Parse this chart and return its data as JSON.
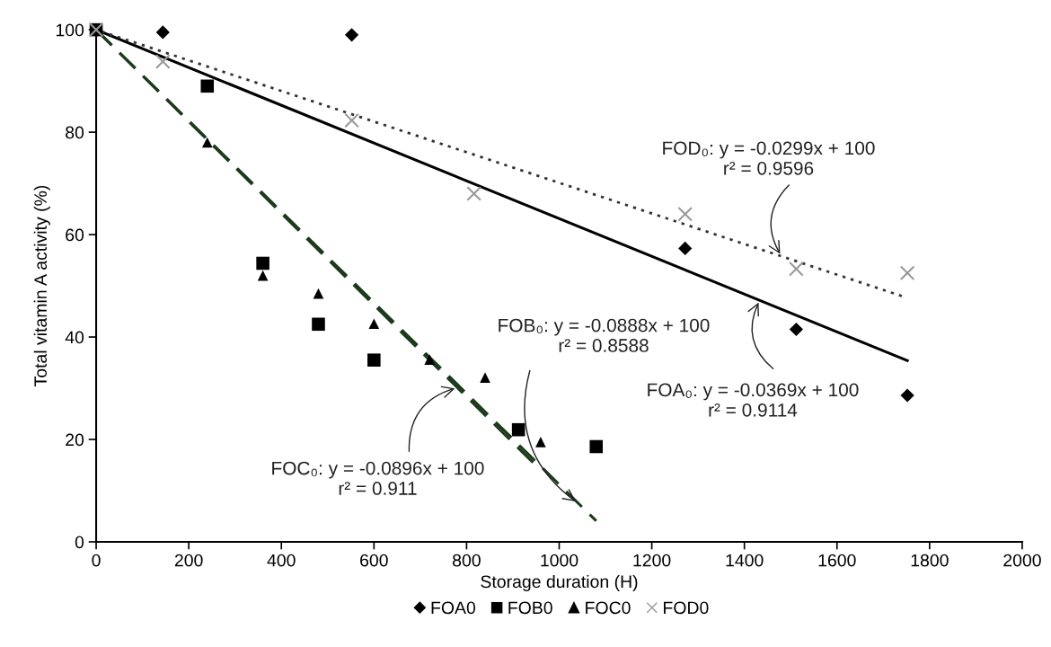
{
  "chart_data": {
    "type": "scatter",
    "xlabel": "Storage duration (H)",
    "ylabel": "Total vitamin A activity (%)",
    "xlim": [
      0,
      2000
    ],
    "xticks": [
      0,
      200,
      400,
      600,
      800,
      1000,
      1200,
      1400,
      1600,
      1800,
      2000
    ],
    "ylim": [
      0,
      100
    ],
    "yticks": [
      0,
      20,
      40,
      60,
      80,
      100
    ],
    "grid": false,
    "legend": "bottom",
    "series": [
      {
        "name": "FOA0",
        "marker": "diamond",
        "color": "#000000",
        "x": [
          144,
          552,
          1272,
          1512,
          1752
        ],
        "values": [
          99.5,
          99,
          57.3,
          41.5,
          28.6
        ]
      },
      {
        "name": "FOB0",
        "marker": "square",
        "color": "#000000",
        "x": [
          0,
          240,
          360,
          480,
          600,
          912,
          1080
        ],
        "values": [
          100,
          89,
          54.4,
          42.5,
          35.5,
          21.9,
          18.6
        ]
      },
      {
        "name": "FOC0",
        "marker": "triangle",
        "color": "#000000",
        "x": [
          240,
          360,
          480,
          600,
          720,
          840,
          960
        ],
        "values": [
          78,
          52,
          48.5,
          42.6,
          35.6,
          32.1,
          19.5
        ]
      },
      {
        "name": "FOD0",
        "marker": "cross",
        "color": "#9a9a9a",
        "x": [
          0,
          144,
          552,
          816,
          1272,
          1512,
          1752
        ],
        "values": [
          100,
          93.8,
          82.3,
          68,
          64,
          53.3,
          52.5
        ]
      },
      {
        "type": "line",
        "line_style": "solid",
        "color": "#000000",
        "x": [
          0,
          1752
        ],
        "values": [
          100,
          35.4
        ]
      },
      {
        "type": "line",
        "line_style": "dashed",
        "color": "#1c3a1c",
        "x": [
          0,
          1080
        ],
        "values": [
          100,
          4.1
        ]
      },
      {
        "type": "line",
        "line_style": "dashed",
        "color": "#1c3a1c",
        "x": [
          0,
          960
        ],
        "values": [
          100,
          14
        ]
      },
      {
        "type": "line",
        "line_style": "dotted",
        "color": "#333333",
        "x": [
          0,
          1740
        ],
        "values": [
          100,
          48
        ]
      }
    ],
    "annotations": [
      {
        "text": "FOD₀: y = -0.0299x + 100\nr² = 0.9596",
        "x": 1480,
        "y": 55.8
      },
      {
        "text": "FOA₀: y = -0.0369x + 100\nr² = 0.9114",
        "x": 1433,
        "y": 47.2
      },
      {
        "text": "FOB₀: y = -0.0888x + 100\nr² = 0.8588",
        "x": 1040,
        "y": 7.6
      },
      {
        "text": "FOC₀: y = -0.0896x + 100\nr² = 0.911",
        "x": 780,
        "y": 30.1
      }
    ]
  }
}
